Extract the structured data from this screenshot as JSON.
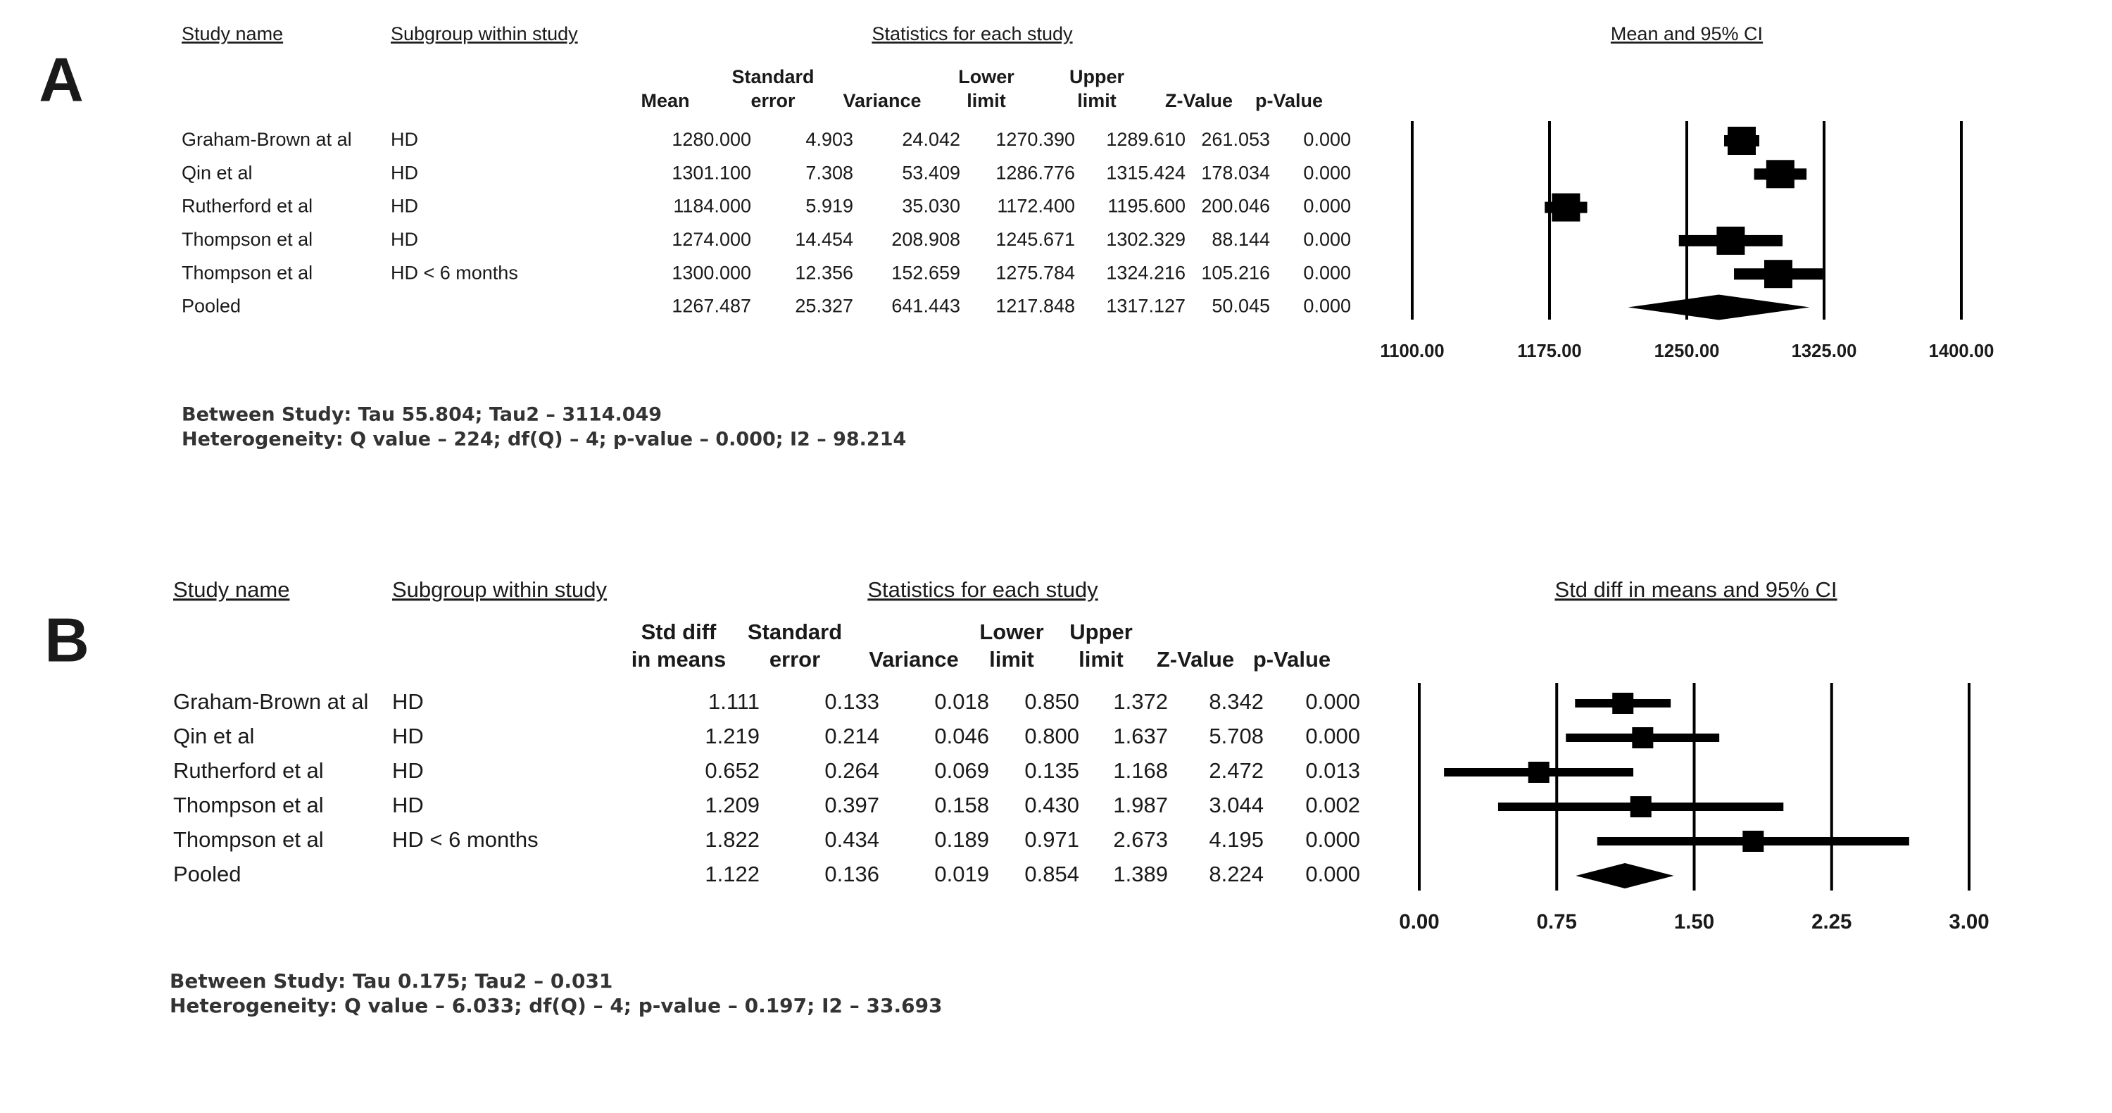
{
  "chart_data": [
    {
      "type": "forest",
      "panel": "A",
      "study_header": "Study name",
      "subgroup_header": "Subgroup within study",
      "stats_header": "Statistics for each study",
      "plot_header": "Mean and 95% CI",
      "columns": {
        "value": [
          "Mean"
        ],
        "se": [
          "Standard",
          "error"
        ],
        "variance": [
          "Variance"
        ],
        "lower": [
          "Lower",
          "limit"
        ],
        "upper": [
          "Upper",
          "limit"
        ],
        "z": [
          "Z-Value"
        ],
        "p": [
          "p-Value"
        ]
      },
      "studies": [
        "Graham-Brown at al",
        "Qin et al",
        "Rutherford et al",
        "Thompson et al",
        "Thompson et al"
      ],
      "subgroups": [
        "HD",
        "HD",
        "HD",
        "HD",
        "HD < 6 months"
      ],
      "values": [
        1280,
        1301.1,
        1184,
        1274,
        1300
      ],
      "value_labels": [
        "1280.000",
        "1301.100",
        "1184.000",
        "1274.000",
        "1300.000"
      ],
      "se": [
        "4.903",
        "7.308",
        "5.919",
        "14.454",
        "12.356"
      ],
      "variance": [
        "24.042",
        "53.409",
        "35.030",
        "208.908",
        "152.659"
      ],
      "lower": [
        1270.39,
        1286.776,
        1172.4,
        1245.671,
        1275.784
      ],
      "lower_labels": [
        "1270.390",
        "1286.776",
        "1172.400",
        "1245.671",
        "1275.784"
      ],
      "upper": [
        1289.61,
        1315.424,
        1195.6,
        1302.329,
        1324.216
      ],
      "upper_labels": [
        "1289.610",
        "1315.424",
        "1195.600",
        "1302.329",
        "1324.216"
      ],
      "z": [
        "261.053",
        "178.034",
        "200.046",
        "88.144",
        "105.216"
      ],
      "p": [
        "0.000",
        "0.000",
        "0.000",
        "0.000",
        "0.000"
      ],
      "pooled": {
        "name": "Pooled",
        "value": 1267.487,
        "value_label": "1267.487",
        "se": "25.327",
        "variance": "641.443",
        "lower": 1217.848,
        "lower_label": "1217.848",
        "upper": 1317.127,
        "upper_label": "1317.127",
        "z": "50.045",
        "p": "0.000"
      },
      "xlim": [
        1100,
        1400
      ],
      "xticks": [
        {
          "value": 1100,
          "label": "1100.00"
        },
        {
          "value": 1175,
          "label": "1175.00"
        },
        {
          "value": 1250,
          "label": "1250.00"
        },
        {
          "value": 1325,
          "label": "1325.00"
        },
        {
          "value": 1400,
          "label": "1400.00"
        }
      ],
      "notes": [
        "Between Study: Tau 55.804; Tau2 – 3114.049",
        "Heterogeneity: Q value – 224; df(Q) – 4; p-value – 0.000; I2 – 98.214"
      ]
    },
    {
      "type": "forest",
      "panel": "B",
      "study_header": "Study name",
      "subgroup_header": "Subgroup within study",
      "stats_header": "Statistics for each study",
      "plot_header": "Std diff in means and 95% CI",
      "columns": {
        "value": [
          "Std diff",
          "in means"
        ],
        "se": [
          "Standard",
          "error"
        ],
        "variance": [
          "Variance"
        ],
        "lower": [
          "Lower",
          "limit"
        ],
        "upper": [
          "Upper",
          "limit"
        ],
        "z": [
          "Z-Value"
        ],
        "p": [
          "p-Value"
        ]
      },
      "studies": [
        "Graham-Brown at al",
        "Qin et al",
        "Rutherford et al",
        "Thompson et al",
        "Thompson et al"
      ],
      "subgroups": [
        "HD",
        "HD",
        "HD",
        "HD",
        "HD < 6 months"
      ],
      "values": [
        1.111,
        1.219,
        0.652,
        1.209,
        1.822
      ],
      "value_labels": [
        "1.111",
        "1.219",
        "0.652",
        "1.209",
        "1.822"
      ],
      "se": [
        "0.133",
        "0.214",
        "0.264",
        "0.397",
        "0.434"
      ],
      "variance": [
        "0.018",
        "0.046",
        "0.069",
        "0.158",
        "0.189"
      ],
      "lower": [
        0.85,
        0.8,
        0.135,
        0.43,
        0.971
      ],
      "lower_labels": [
        "0.850",
        "0.800",
        "0.135",
        "0.430",
        "0.971"
      ],
      "upper": [
        1.372,
        1.637,
        1.168,
        1.987,
        2.673
      ],
      "upper_labels": [
        "1.372",
        "1.637",
        "1.168",
        "1.987",
        "2.673"
      ],
      "z": [
        "8.342",
        "5.708",
        "2.472",
        "3.044",
        "4.195"
      ],
      "p": [
        "0.000",
        "0.000",
        "0.013",
        "0.002",
        "0.000"
      ],
      "pooled": {
        "name": "Pooled",
        "value": 1.122,
        "value_label": "1.122",
        "se": "0.136",
        "variance": "0.019",
        "lower": 0.854,
        "lower_label": "0.854",
        "upper": 1.389,
        "upper_label": "1.389",
        "z": "8.224",
        "p": "0.000"
      },
      "xlim": [
        0,
        3
      ],
      "xticks": [
        {
          "value": 0,
          "label": "0.00"
        },
        {
          "value": 0.75,
          "label": "0.75"
        },
        {
          "value": 1.5,
          "label": "1.50"
        },
        {
          "value": 2.25,
          "label": "2.25"
        },
        {
          "value": 3,
          "label": "3.00"
        }
      ],
      "notes": [
        "Between Study: Tau 0.175; Tau2 – 0.031",
        "Heterogeneity: Q value – 6.033; df(Q) – 4; p-value – 0.197; I2 – 33.693"
      ]
    }
  ]
}
